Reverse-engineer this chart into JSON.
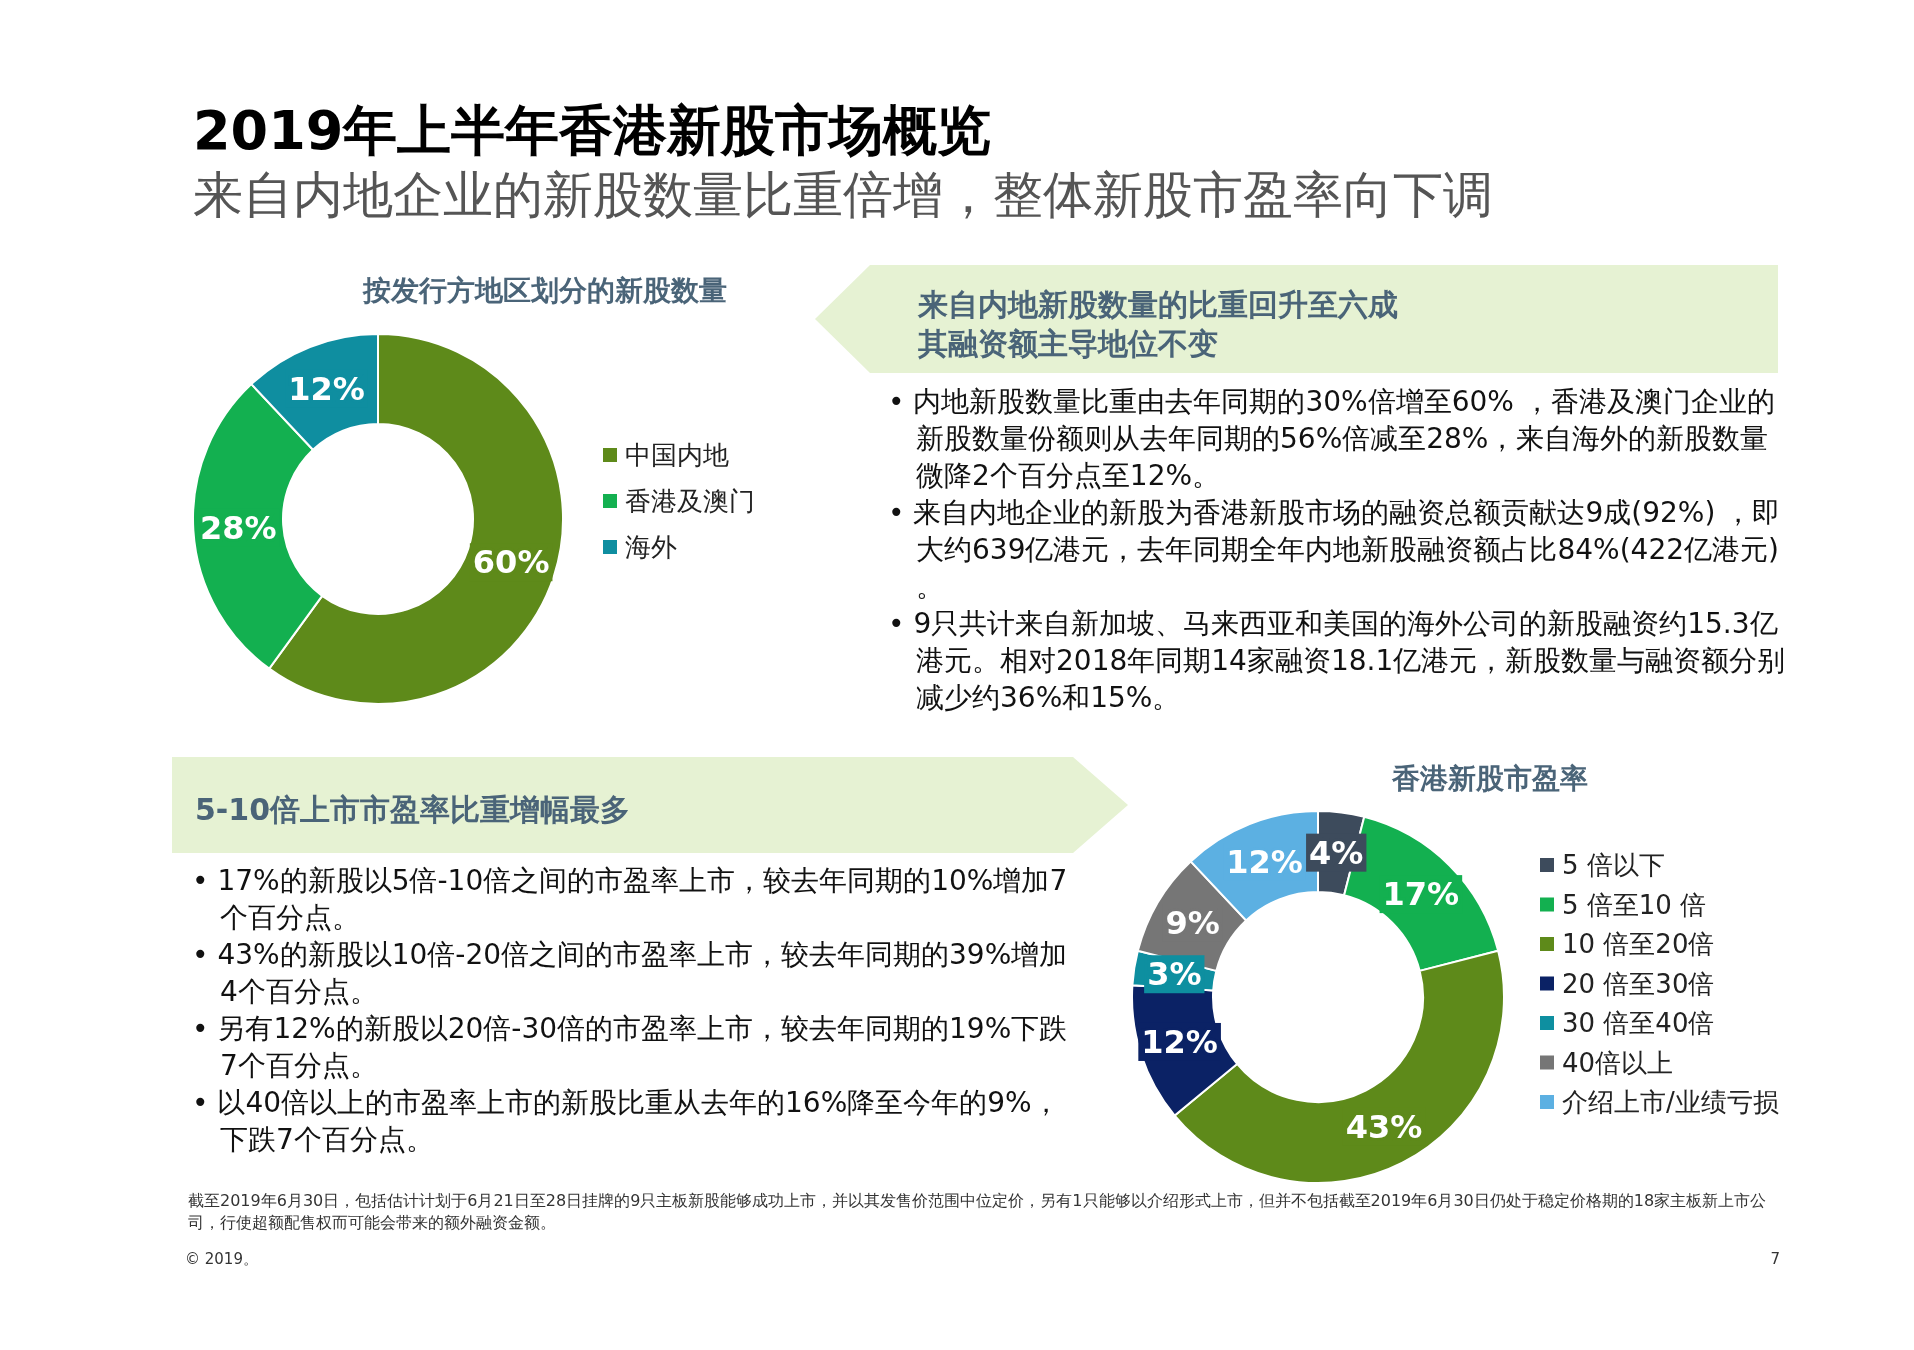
{
  "chart_data": [
    {
      "type": "other",
      "title": "2019年上半年香港新股市场概览",
      "subtitle": "来自内地企业的新股数量比重倍增，整体新股市盈率向下调"
    },
    {
      "type": "donut",
      "title": "按发行方地区划分的新股数量",
      "categories": [
        "中国内地",
        "香港及澳门",
        "海外"
      ],
      "values": [
        60,
        28,
        12
      ],
      "value_labels": [
        "60%",
        "28%",
        "12%"
      ],
      "colors": [
        "#5e8a1a",
        "#13b050",
        "#0f8ea0"
      ],
      "legend": "right"
    },
    {
      "type": "other",
      "title": "来自内地新股数量的比重回升至六成其融资额主导地位不变",
      "annotations": [
        "• 内地新股数量比重由去年同期的30%倍增至60% ，香港及澳门企业的新股数量份额则从去年同期的56%倍减至28%，来自海外的新股数量微降2个百分点至12%。",
        "• 来自内地企业的新股为香港新股市场的融资总额贡献达9成(92%) ，即大约639亿港元，去年同期全年内地新股融资额占比84%(422亿港元) 。",
        "• 9只共计来自新加坡、马来西亚和美国的海外公司的新股融资约15.3亿港元。相对2018年同期14家融资18.1亿港元，新股数量与融资额分别减少约36%和15%。"
      ]
    },
    {
      "type": "other",
      "title": "5-10倍上市市盈率比重增幅最多",
      "annotations": [
        "• 17%的新股以5倍-10倍之间的市盈率上市，较去年同期的10%增加7个百分点。",
        "• 43%的新股以10倍-20倍之间的市盈率上市，较去年同期的39%增加4个百分点。",
        "• 另有12%的新股以20倍-30倍的市盈率上市，较去年同期的19%下跌7个百分点。",
        "• 以40倍以上的市盈率上市的新股比重从去年的16%降至今年的9%，下跌7个百分点。"
      ]
    },
    {
      "type": "donut",
      "title": "香港新股市盈率",
      "categories": [
        "5 倍以下",
        "5 倍至10 倍",
        "10 倍至20倍",
        "20 倍至30倍",
        "30 倍至40倍",
        "40倍以上",
        "介绍上市/业绩亏损"
      ],
      "values": [
        4,
        17,
        43,
        12,
        3,
        9,
        12
      ],
      "value_labels": [
        "4%",
        "17%",
        "43%",
        "12%",
        "3%",
        "9%",
        "12%"
      ],
      "colors": [
        "#3d4b5c",
        "#13b050",
        "#5e8a1a",
        "#0b2265",
        "#0e8fa0",
        "#767676",
        "#5cb0e2"
      ],
      "legend": "right"
    },
    {
      "type": "other",
      "annotations": [
        "截至2019年6月30日，包括估计计划于6月21日至28日挂牌的9只主板新股能够成功上市，并以其发售价范围中位定价，另有1只能够以介绍形式上市，但并不包括截至2019年6月30日仍处于稳定价格期的18家主板新上市公司，行使超额配售权而可能会带来的额外融资金额。",
        "© 2019。",
        "7"
      ]
    }
  ]
}
